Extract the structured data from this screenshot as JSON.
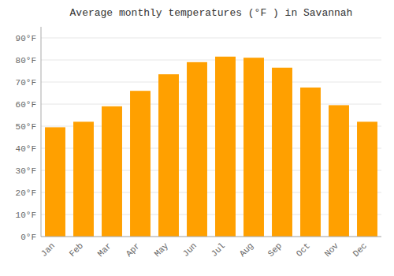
{
  "chart_data": {
    "type": "bar",
    "title": "Average monthly temperatures (°F ) in Savannah",
    "categories": [
      "Jan",
      "Feb",
      "Mar",
      "Apr",
      "May",
      "Jun",
      "Jul",
      "Aug",
      "Sep",
      "Oct",
      "Nov",
      "Dec"
    ],
    "values": [
      49.5,
      52.0,
      59.0,
      66.0,
      73.5,
      79.0,
      81.5,
      81.0,
      76.5,
      67.5,
      59.5,
      52.0
    ],
    "color": "#FFA000",
    "ylim": [
      0,
      95
    ],
    "yticks": [
      {
        "value": 0,
        "label": "0°F"
      },
      {
        "value": 10,
        "label": "10°F"
      },
      {
        "value": 20,
        "label": "20°F"
      },
      {
        "value": 30,
        "label": "30°F"
      },
      {
        "value": 40,
        "label": "40°F"
      },
      {
        "value": 50,
        "label": "50°F"
      },
      {
        "value": 60,
        "label": "60°F"
      },
      {
        "value": 70,
        "label": "70°F"
      },
      {
        "value": 80,
        "label": "80°F"
      },
      {
        "value": 90,
        "label": "90°F"
      }
    ],
    "grid": true
  }
}
